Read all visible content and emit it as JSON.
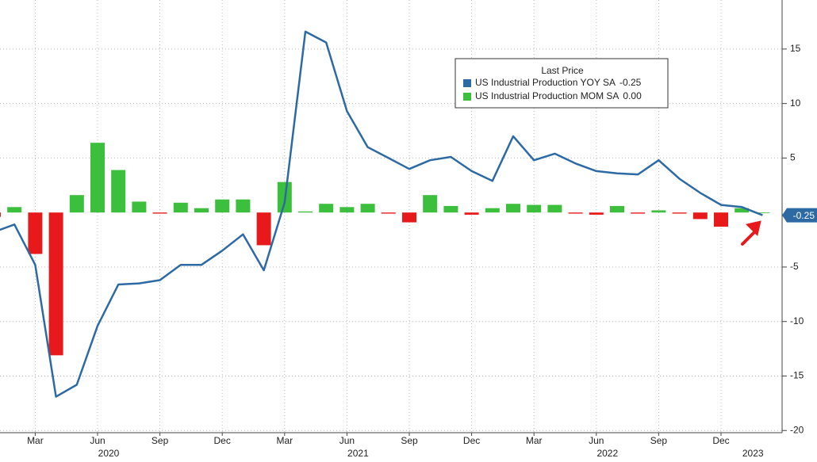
{
  "chart_data": {
    "type": "combo",
    "legend_title": "Last Price",
    "categories": [
      null,
      null,
      "Mar",
      null,
      null,
      "Jun",
      null,
      null,
      "Sep",
      null,
      null,
      "Dec",
      null,
      null,
      "Mar",
      null,
      null,
      "Jun",
      null,
      null,
      "Sep",
      null,
      null,
      "Dec",
      null,
      null,
      "Mar",
      null,
      null,
      "Jun",
      null,
      null,
      "Sep",
      null,
      null,
      "Dec",
      null,
      null
    ],
    "years": [
      null,
      null,
      null,
      null,
      null,
      "2020",
      null,
      null,
      null,
      null,
      null,
      null,
      null,
      null,
      null,
      null,
      null,
      "2021",
      null,
      null,
      null,
      null,
      null,
      null,
      null,
      null,
      null,
      null,
      null,
      "2022",
      null,
      null,
      null,
      null,
      null,
      null,
      "2023",
      null
    ],
    "series": [
      {
        "name": "US Industrial Production YOY SA",
        "type": "line",
        "color": "#2d6aa3",
        "last_value_label": "-0.25",
        "values": [
          -1.8,
          -1.1,
          -4.8,
          -16.9,
          -15.8,
          -10.4,
          -6.6,
          -6.5,
          -6.2,
          -4.8,
          -4.8,
          -3.5,
          -2.0,
          -5.3,
          0.9,
          16.6,
          15.6,
          9.3,
          6.0,
          5.0,
          4.0,
          4.8,
          5.1,
          3.8,
          2.9,
          7.0,
          4.8,
          5.4,
          4.5,
          3.8,
          3.6,
          3.5,
          4.8,
          3.1,
          1.8,
          0.7,
          0.5,
          -0.25
        ]
      },
      {
        "name": "US Industrial Production MOM SA",
        "type": "bar",
        "color": "#3cbf3c",
        "negative_color": "#e8191b",
        "last_value_label": "0.00",
        "values": [
          -0.4,
          0.5,
          -3.8,
          -13.1,
          1.6,
          6.4,
          3.9,
          1.0,
          -0.1,
          0.9,
          0.4,
          1.2,
          1.2,
          -3.0,
          2.8,
          0.1,
          0.8,
          0.5,
          0.8,
          -0.1,
          -0.9,
          1.6,
          0.6,
          -0.2,
          0.4,
          0.8,
          0.7,
          0.7,
          -0.1,
          -0.2,
          0.6,
          -0.1,
          0.2,
          -0.1,
          -0.6,
          -1.3,
          0.4,
          0.0
        ]
      }
    ],
    "ylim": [
      -20.2,
      19.5
    ],
    "yticks": [
      15,
      10,
      5,
      -5,
      -10,
      -15,
      -20
    ],
    "grid": true
  }
}
